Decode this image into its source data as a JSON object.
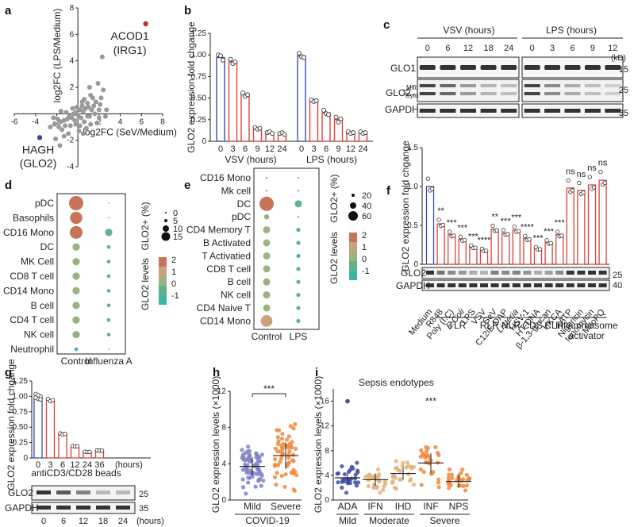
{
  "panel_letters": [
    "a",
    "b",
    "c",
    "d",
    "e",
    "f",
    "g",
    "h",
    "i"
  ],
  "chart_data": [
    {
      "panel": "a",
      "type": "scatter",
      "xlabel": "log2FC (SeV/Medium)",
      "ylabel": "log2FC (LPS/Medium)",
      "xlim": [
        -6,
        8
      ],
      "ylim": [
        -4,
        8
      ],
      "xticks": [
        "-6",
        "-4",
        "-2",
        "2",
        "4",
        "6",
        "8"
      ],
      "yticks": [
        "-4",
        "-2",
        "2",
        "4",
        "6",
        "8"
      ],
      "highlight": [
        {
          "label1": "ACOD1",
          "label2": "(IRG1)",
          "x": 6.4,
          "y": 6.8,
          "color": "#c0303b"
        },
        {
          "label1": "HAGH",
          "label2": "(GLO2)",
          "x": -3.6,
          "y": -1.8,
          "color": "#3a4a9a"
        }
      ],
      "points": [
        [
          2.3,
          4.3
        ],
        [
          1.9,
          2.3
        ],
        [
          2.4,
          1.8
        ],
        [
          1.1,
          2.0
        ],
        [
          1.4,
          1.2
        ],
        [
          1.7,
          0.9
        ],
        [
          2.1,
          0.7
        ],
        [
          0.6,
          1.1
        ],
        [
          0.9,
          0.8
        ],
        [
          0.4,
          0.6
        ],
        [
          0.7,
          0.4
        ],
        [
          1.0,
          0.5
        ],
        [
          1.3,
          0.3
        ],
        [
          0.2,
          0.3
        ],
        [
          0.5,
          0.2
        ],
        [
          -0.2,
          0.1
        ],
        [
          0.0,
          -0.1
        ],
        [
          -0.4,
          0.0
        ],
        [
          -0.6,
          -0.3
        ],
        [
          -0.8,
          -0.2
        ],
        [
          -1.0,
          -0.4
        ],
        [
          -1.3,
          -0.5
        ],
        [
          -1.6,
          -0.6
        ],
        [
          -1.9,
          -0.4
        ],
        [
          -0.3,
          -0.5
        ],
        [
          0.3,
          -0.3
        ],
        [
          0.6,
          -0.6
        ],
        [
          1.1,
          -0.2
        ],
        [
          1.6,
          0.0
        ],
        [
          2.0,
          -0.3
        ],
        [
          2.6,
          -0.2
        ],
        [
          2.7,
          0.3
        ],
        [
          2.0,
          0.3
        ],
        [
          -1.2,
          -0.9
        ],
        [
          -0.7,
          -0.9
        ],
        [
          -0.2,
          -0.8
        ],
        [
          0.2,
          -0.9
        ],
        [
          -1.5,
          -1.2
        ],
        [
          -2.2,
          -0.8
        ],
        [
          -2.6,
          -1.0
        ],
        [
          -1.8,
          -1.0
        ],
        [
          0.8,
          -1.1
        ],
        [
          1.2,
          -0.8
        ],
        [
          -0.5,
          0.4
        ],
        [
          -1.1,
          0.1
        ],
        [
          -1.6,
          0.2
        ],
        [
          -2.3,
          -0.3
        ],
        [
          0.4,
          0.9
        ],
        [
          1.5,
          0.6
        ],
        [
          2.2,
          1.2
        ],
        [
          -0.9,
          -1.5
        ],
        [
          -1.3,
          -1.7
        ],
        [
          0.1,
          -1.3
        ],
        [
          0.5,
          -1.5
        ],
        [
          -2.1,
          -1.9
        ],
        [
          -1.7,
          -2.4
        ],
        [
          1.8,
          -0.7
        ],
        [
          0.9,
          -0.2
        ],
        [
          -0.1,
          0.5
        ],
        [
          1.2,
          1.4
        ]
      ]
    },
    {
      "panel": "b",
      "type": "bar",
      "ylabel": "GLO2 expression fold chgange",
      "ylim": [
        0,
        1.25
      ],
      "yticks": [
        "0",
        "0.25",
        "0.50",
        "0.75",
        "1.00",
        "1.25"
      ],
      "groups": [
        {
          "name": "VSV (hours)",
          "categories": [
            "0",
            "3",
            "6",
            "9",
            "12",
            "24"
          ],
          "values": [
            0.97,
            0.92,
            0.54,
            0.15,
            0.1,
            0.09
          ],
          "points": [
            [
              1.0,
              0.99,
              0.94
            ],
            [
              0.95,
              0.9,
              0.92
            ],
            [
              0.56,
              0.52,
              0.54
            ],
            [
              0.16,
              0.14,
              0.15
            ],
            [
              0.1,
              0.11,
              0.09
            ],
            [
              0.09,
              0.1,
              0.08
            ]
          ]
        },
        {
          "name": "LPS (hours)",
          "categories": [
            "0",
            "3",
            "6",
            "9",
            "12",
            "24"
          ],
          "values": [
            0.99,
            0.47,
            0.33,
            0.25,
            0.1,
            0.1
          ],
          "points": [
            [
              1.02,
              0.98,
              0.97
            ],
            [
              0.48,
              0.46,
              0.47
            ],
            [
              0.36,
              0.32,
              0.31
            ],
            [
              0.28,
              0.22,
              0.26
            ],
            [
              0.11,
              0.09,
              0.1
            ],
            [
              0.11,
              0.09,
              0.1
            ]
          ]
        }
      ]
    },
    {
      "panel": "d",
      "type": "dotplot",
      "rows": [
        "pDC",
        "Basophils",
        "CD16 Mono",
        "DC",
        "MK Cell",
        "CD8 T cell",
        "CD14 Mono",
        "B cell",
        "CD4 T cell",
        "NK cell",
        "Neutrophil"
      ],
      "columns": [
        "Control",
        "Influenza A"
      ],
      "pct": [
        [
          15,
          0
        ],
        [
          11,
          0
        ],
        [
          12,
          4
        ],
        [
          4,
          1
        ],
        [
          4,
          1
        ],
        [
          4,
          1
        ],
        [
          4,
          1
        ],
        [
          4,
          1
        ],
        [
          4,
          1
        ],
        [
          4,
          1
        ],
        [
          1,
          0
        ]
      ],
      "level": [
        2,
        1.5,
        1.5,
        0.5,
        0.5,
        0.5,
        0.5,
        0.5,
        0.5,
        0.5,
        -0.5
      ],
      "size_legend_title": "GLO2+ (%)",
      "size_legend": [
        "0",
        "5",
        "10",
        "15"
      ],
      "color_legend_title": "GLO2 levels",
      "color_legend": [
        "2",
        "1",
        "0",
        "-1"
      ]
    },
    {
      "panel": "e",
      "type": "dotplot",
      "rows": [
        "CD16 Mono",
        "Mk cell",
        "DC",
        "pDC",
        "CD4 Memory T",
        "B Activated",
        "T Activatied",
        "CD8 T cell",
        "B cell",
        "NK cell",
        "CD4 Naive T",
        "CD14 Mono"
      ],
      "columns": [
        "Control",
        "LPS"
      ],
      "pct": [
        [
          1,
          1
        ],
        [
          1,
          1
        ],
        [
          60,
          15
        ],
        [
          8,
          1
        ],
        [
          15,
          5
        ],
        [
          15,
          5
        ],
        [
          15,
          5
        ],
        [
          15,
          5
        ],
        [
          15,
          5
        ],
        [
          15,
          5
        ],
        [
          15,
          5
        ],
        [
          40,
          5
        ]
      ],
      "level": [
        0,
        0,
        1.5,
        0.5,
        0.5,
        0.5,
        0.5,
        0.5,
        0.5,
        0.5,
        0.5,
        1
      ],
      "size_legend_title": "GLO2+ (%)",
      "size_legend": [
        "20",
        "40",
        "60"
      ],
      "color_legend_title": "GLO2 levels",
      "color_legend": [
        "2",
        "1",
        "0",
        "-1"
      ]
    },
    {
      "panel": "f",
      "type": "bar",
      "ylabel": "GLO2 expression fold chgange",
      "ylim": [
        0,
        1.5
      ],
      "yticks": [
        "0",
        "0.5",
        "1.0",
        "1.5"
      ],
      "categories": [
        "Medium",
        "R848",
        "Poly (I:C)",
        "E.Coli",
        "LPS",
        "VSV",
        "SeV",
        "C12iE-DAP",
        "Listeria",
        "HSV-1",
        "HT-DNA",
        "β-1,3-glucan",
        "HKCA",
        "ATP",
        "Nigericin",
        "Ionomycin",
        "MitoPQ"
      ],
      "values": [
        1.0,
        0.52,
        0.38,
        0.32,
        0.22,
        0.18,
        0.45,
        0.4,
        0.44,
        0.33,
        0.2,
        0.28,
        0.38,
        0.98,
        0.95,
        1.02,
        1.08
      ],
      "sig": [
        "",
        "**",
        "***",
        "***",
        "***",
        "****",
        "**",
        "***",
        "***",
        "****",
        "***",
        "***",
        "***",
        "ns",
        "ns",
        "ns",
        "ns"
      ],
      "groups": [
        {
          "name": "TLR",
          "from": 1,
          "to": 4
        },
        {
          "name": "RLR",
          "from": 5,
          "to": 6
        },
        {
          "name": "NLR",
          "from": 7,
          "to": 8
        },
        {
          "name": "CDS",
          "from": 9,
          "to": 10
        },
        {
          "name": "CLR",
          "from": 11,
          "to": 12
        },
        {
          "name": "Inflammasome",
          "name2": "activator",
          "from": 13,
          "to": 16
        }
      ],
      "blot_rows": [
        "GLO2",
        "GAPDH"
      ],
      "blot_markers": [
        "25",
        "40"
      ]
    },
    {
      "panel": "g",
      "type": "bar",
      "ylabel": "GLO2 expression fold chgange",
      "ylim": [
        0,
        1.25
      ],
      "yticks": [
        "0",
        "0.25",
        "0.50",
        "0.75",
        "1.00",
        "1.25"
      ],
      "categories": [
        "0",
        "3",
        "6",
        "12",
        "24",
        "36"
      ],
      "values": [
        0.99,
        0.94,
        0.39,
        0.19,
        0.1,
        0.12
      ],
      "xlabel": "antiCD3/CD28 beads",
      "xunit": "(hours)",
      "blot_rows": [
        "GLO2",
        "GAPDH"
      ],
      "blot_markers": [
        "25",
        "35"
      ],
      "blot_lanes": [
        "0",
        "6",
        "12",
        "18",
        "24"
      ],
      "blot_unit": "(hours)"
    },
    {
      "panel": "h",
      "type": "scatter",
      "ylabel": "GLO2 expression levels (×1000)",
      "ylim": [
        0,
        12
      ],
      "yticks": [
        "0",
        "4",
        "8",
        "12"
      ],
      "categories": [
        "Mild",
        "Severe"
      ],
      "median": [
        3.7,
        4.9
      ],
      "sig": "***",
      "group_label": "COVID-19"
    },
    {
      "panel": "i",
      "type": "scatter",
      "title": "Sepsis endotypes",
      "ylabel": "GLO2 expression levels (×1000)",
      "ylim": [
        0,
        18
      ],
      "yticks": [
        "0",
        "4",
        "8",
        "12",
        "16"
      ],
      "categories": [
        "ADA",
        "IFN",
        "IHD",
        "INF",
        "NPS"
      ],
      "median": [
        3.6,
        3.3,
        4.3,
        6.0,
        3.0
      ],
      "sig": "***",
      "groups": [
        {
          "name": "Mild",
          "from": 0,
          "to": 0
        },
        {
          "name": "Moderate",
          "from": 1,
          "to": 2
        },
        {
          "name": "Severe",
          "from": 3,
          "to": 4
        }
      ]
    }
  ],
  "blot_c": {
    "header_left": "VSV (hours)",
    "header_right": "LPS (hours)",
    "lanes_left": [
      "0",
      "6",
      "12",
      "18",
      "24"
    ],
    "lanes_right": [
      "0",
      "3",
      "6",
      "9",
      "12"
    ],
    "rows": [
      "GLO1",
      "GLO2",
      "GAPDH"
    ],
    "glo2_sub": [
      "Mito",
      "Cyto"
    ],
    "marker_unit": "(kD)",
    "markers": [
      "15",
      "25",
      "35"
    ]
  },
  "colors": {
    "blue": "#3d4fa6",
    "red": "#d8433a",
    "gray": "#9a9a9a",
    "orange": "#f0883e",
    "purple": "#7f84c6",
    "tan": "#e2b47a"
  }
}
